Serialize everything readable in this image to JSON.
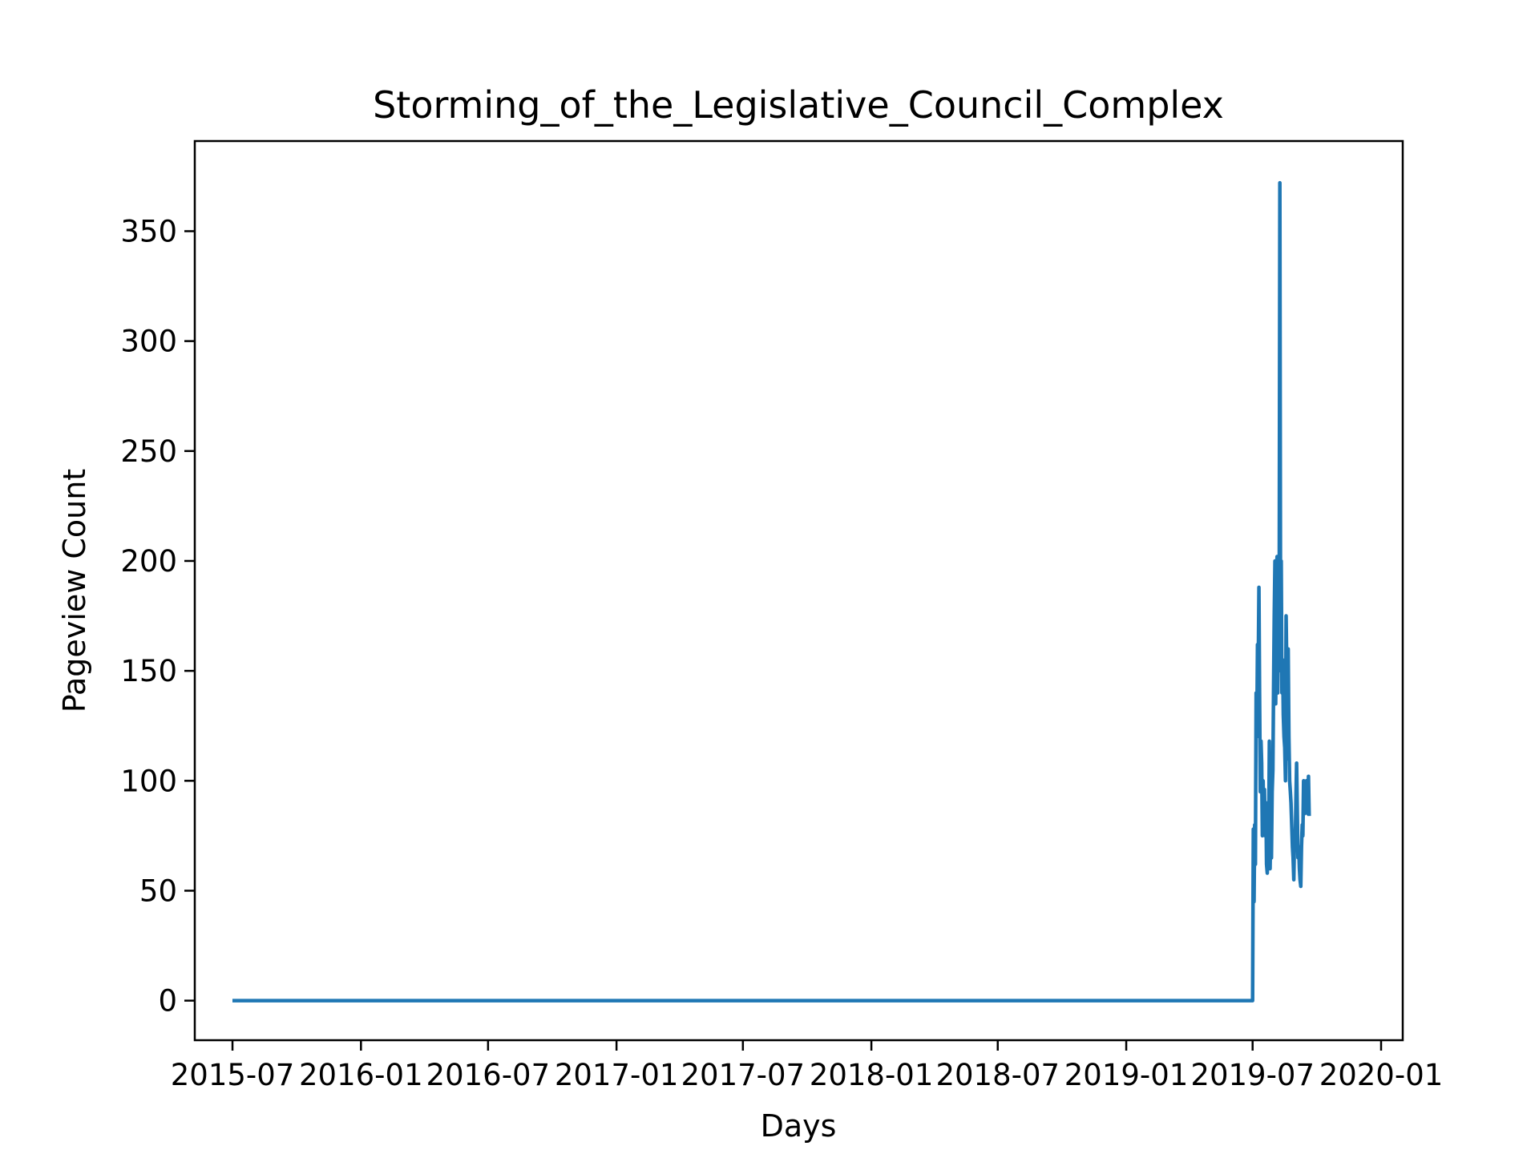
{
  "chart_data": {
    "type": "line",
    "title": "Storming_of_the_Legislative_Council_Complex",
    "xlabel": "Days",
    "ylabel": "Pageview Count",
    "grid": false,
    "line_color": "#1f77b4",
    "xlim": [
      "2015-05-08",
      "2020-02-01"
    ],
    "ylim": [
      -18,
      391
    ],
    "x_ticks": [
      {
        "date": "2015-07-01",
        "label": "2015-07"
      },
      {
        "date": "2016-01-01",
        "label": "2016-01"
      },
      {
        "date": "2016-07-01",
        "label": "2016-07"
      },
      {
        "date": "2017-01-01",
        "label": "2017-01"
      },
      {
        "date": "2017-07-01",
        "label": "2017-07"
      },
      {
        "date": "2018-01-01",
        "label": "2018-01"
      },
      {
        "date": "2018-07-01",
        "label": "2018-07"
      },
      {
        "date": "2019-01-01",
        "label": "2019-01"
      },
      {
        "date": "2019-07-01",
        "label": "2019-07"
      },
      {
        "date": "2020-01-01",
        "label": "2020-01"
      }
    ],
    "y_ticks": [
      0,
      50,
      100,
      150,
      200,
      250,
      300,
      350
    ],
    "series": [
      {
        "x": [
          "2015-07-01",
          "2019-07-01",
          "2019-07-02",
          "2019-07-03",
          "2019-07-04",
          "2019-07-05",
          "2019-07-06",
          "2019-07-07",
          "2019-07-08",
          "2019-07-09",
          "2019-07-10",
          "2019-07-11",
          "2019-07-12",
          "2019-07-13",
          "2019-07-14",
          "2019-07-15",
          "2019-07-16",
          "2019-07-17",
          "2019-07-18",
          "2019-07-19",
          "2019-07-20",
          "2019-07-21",
          "2019-07-22",
          "2019-07-23",
          "2019-07-24",
          "2019-07-25",
          "2019-07-26",
          "2019-07-27",
          "2019-07-28",
          "2019-07-29",
          "2019-07-30",
          "2019-07-31",
          "2019-08-01",
          "2019-08-02",
          "2019-08-03",
          "2019-08-04",
          "2019-08-05",
          "2019-08-06",
          "2019-08-07",
          "2019-08-08",
          "2019-08-09",
          "2019-08-10",
          "2019-08-11",
          "2019-08-12",
          "2019-08-13",
          "2019-08-14",
          "2019-08-15",
          "2019-08-16",
          "2019-08-17",
          "2019-08-18",
          "2019-08-19",
          "2019-08-20",
          "2019-08-21",
          "2019-08-22",
          "2019-08-23",
          "2019-08-24",
          "2019-08-25",
          "2019-08-26",
          "2019-08-27",
          "2019-08-28",
          "2019-08-29",
          "2019-08-30",
          "2019-08-31",
          "2019-09-01",
          "2019-09-02",
          "2019-09-03",
          "2019-09-04",
          "2019-09-05",
          "2019-09-06",
          "2019-09-07",
          "2019-09-08",
          "2019-09-09",
          "2019-09-10",
          "2019-09-11",
          "2019-09-12",
          "2019-09-13",
          "2019-09-14",
          "2019-09-15",
          "2019-09-16",
          "2019-09-17",
          "2019-09-18",
          "2019-09-19",
          "2019-09-20"
        ],
        "y": [
          0,
          0,
          78,
          45,
          80,
          62,
          140,
          120,
          162,
          150,
          188,
          140,
          95,
          118,
          108,
          75,
          100,
          80,
          96,
          75,
          90,
          62,
          58,
          72,
          70,
          118,
          60,
          80,
          65,
          95,
          105,
          140,
          175,
          200,
          135,
          160,
          202,
          140,
          175,
          150,
          372,
          170,
          200,
          140,
          155,
          130,
          120,
          115,
          100,
          175,
          150,
          110,
          160,
          120,
          100,
          95,
          90,
          80,
          70,
          65,
          55,
          75,
          70,
          90,
          108,
          85,
          65,
          70,
          60,
          55,
          52,
          70,
          80,
          75,
          100,
          85,
          90,
          95,
          100,
          90,
          85,
          102,
          84
        ]
      }
    ]
  }
}
